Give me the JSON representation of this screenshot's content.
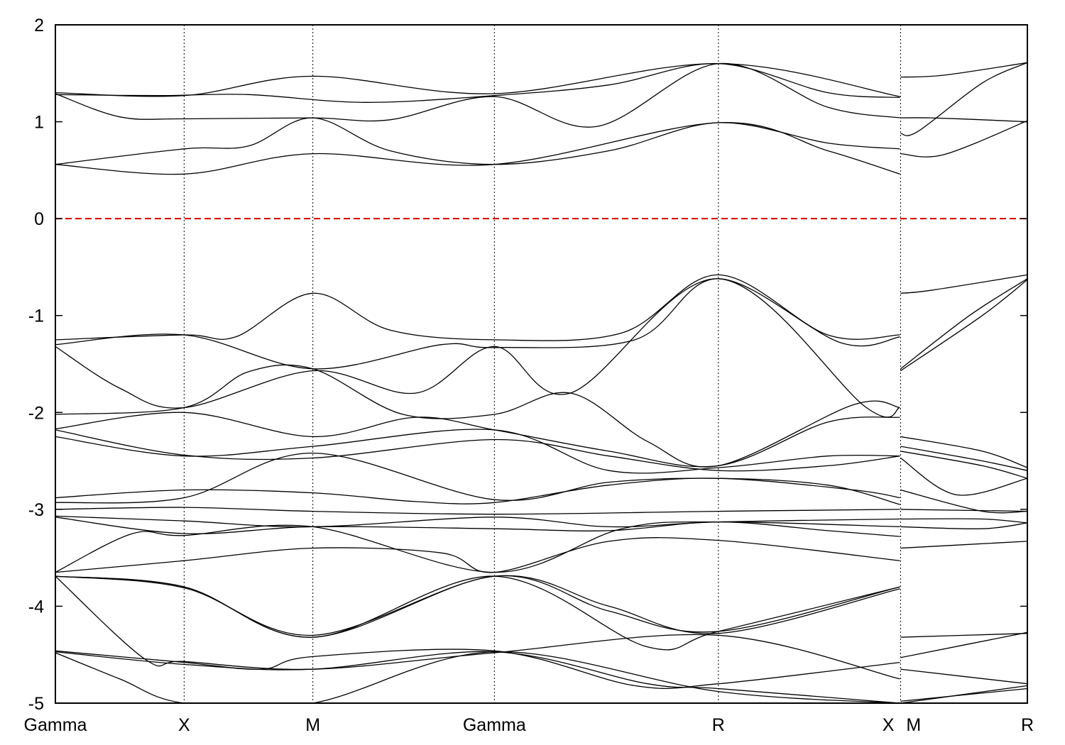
{
  "chart_data": {
    "type": "line",
    "title": "",
    "xlabel": "",
    "ylabel": "",
    "ylim": [
      -5,
      2
    ],
    "yticks": [
      2,
      1,
      0,
      -1,
      -2,
      -3,
      -4,
      -5
    ],
    "grid": "vertical dotted lines at high-symmetry points",
    "legend": "none",
    "kpoints": [
      {
        "label": "Gamma",
        "x": 0
      },
      {
        "label": "X",
        "x": 1
      },
      {
        "label": "M",
        "x": 2
      },
      {
        "label": "Gamma",
        "x": 3.41
      },
      {
        "label": "R",
        "x": 5.15
      },
      {
        "label": "X",
        "x": 6.56
      },
      {
        "label": "M",
        "x": 6.565
      },
      {
        "label": "R",
        "x": 7.55
      }
    ],
    "x_range": [
      0,
      7.55
    ],
    "fermi_level": {
      "y": 0,
      "color": "#cc0000",
      "style": "dashed"
    },
    "band_color": "#000000",
    "series": [
      {
        "x": [
          0,
          1,
          2,
          3.41,
          5.15,
          6.56
        ],
        "y": [
          1.3,
          1.27,
          1.47,
          1.29,
          1.6,
          1.26
        ]
      },
      {
        "x": [
          0,
          0.8,
          1.5,
          2.4,
          3.41,
          4.3,
          5.15,
          6.0,
          6.56
        ],
        "y": [
          1.28,
          1.27,
          1.28,
          1.2,
          1.27,
          1.38,
          1.6,
          1.3,
          1.25
        ]
      },
      {
        "x": [
          0,
          0.5,
          1,
          2,
          2.6,
          3.41,
          4.2,
          5.15,
          6.0,
          6.56
        ],
        "y": [
          1.29,
          1.05,
          1.03,
          1.04,
          1.02,
          1.26,
          0.95,
          1.6,
          1.15,
          1.04
        ]
      },
      {
        "x": [
          0,
          1,
          1.5,
          2,
          2.6,
          3.41,
          4.3,
          5.15,
          6.0,
          6.56
        ],
        "y": [
          0.56,
          0.72,
          0.75,
          1.04,
          0.7,
          0.56,
          0.7,
          0.99,
          0.78,
          0.72
        ]
      },
      {
        "x": [
          0,
          1,
          2,
          3.41,
          5.15,
          6.0,
          6.56
        ],
        "y": [
          0.56,
          0.46,
          0.67,
          0.56,
          0.99,
          0.7,
          0.46
        ]
      },
      {
        "x": [
          6.565,
          6.9,
          7.55
        ],
        "y": [
          1.46,
          1.48,
          1.61
        ]
      },
      {
        "x": [
          6.565,
          6.8,
          7.2,
          7.55
        ],
        "y": [
          1.04,
          1.04,
          1.02,
          1.0
        ]
      },
      {
        "x": [
          6.565,
          6.7,
          7.2,
          7.55
        ],
        "y": [
          0.88,
          0.9,
          1.4,
          1.61
        ]
      },
      {
        "x": [
          6.565,
          6.9,
          7.55
        ],
        "y": [
          0.67,
          0.66,
          1.01
        ]
      },
      {
        "x": [
          0,
          1,
          1.4,
          2,
          2.6,
          3.41,
          4.4,
          5.15,
          6.0,
          6.56
        ],
        "y": [
          -1.25,
          -1.2,
          -1.22,
          -0.77,
          -1.15,
          -1.25,
          -1.18,
          -0.58,
          -1.2,
          -1.2
        ]
      },
      {
        "x": [
          0,
          1,
          2,
          3.0,
          3.41,
          4.5,
          5.15,
          6.1,
          6.56
        ],
        "y": [
          -1.3,
          -1.2,
          -1.55,
          -1.3,
          -1.33,
          -1.25,
          -0.62,
          -1.28,
          -1.22
        ]
      },
      {
        "x": [
          0,
          0.5,
          1,
          2,
          2.8,
          3.41,
          4.0,
          5.15,
          6.3,
          6.56
        ],
        "y": [
          -1.32,
          -1.75,
          -1.95,
          -1.57,
          -1.8,
          -1.32,
          -1.8,
          -0.62,
          -1.95,
          -1.95
        ]
      },
      {
        "x": [
          0,
          1,
          1.5,
          2,
          2.7,
          3.41,
          4.0,
          4.6,
          5.15,
          6.2,
          6.56
        ],
        "y": [
          -2.02,
          -1.95,
          -1.58,
          -1.55,
          -2.02,
          -2.02,
          -1.8,
          -2.3,
          -2.55,
          -1.92,
          -1.95
        ]
      },
      {
        "x": [
          0,
          1,
          2,
          2.8,
          3.41,
          4.3,
          5.15,
          6.0,
          6.56
        ],
        "y": [
          -2.17,
          -2.0,
          -2.25,
          -2.05,
          -2.18,
          -2.4,
          -2.55,
          -2.1,
          -2.05
        ]
      },
      {
        "x": [
          0,
          1,
          2,
          3.41,
          4.3,
          5.15,
          6.0,
          6.56
        ],
        "y": [
          -2.25,
          -2.45,
          -2.35,
          -2.18,
          -2.6,
          -2.57,
          -2.45,
          -2.45
        ]
      },
      {
        "x": [
          0,
          1,
          2,
          3.41,
          4.3,
          5.15,
          6.0,
          6.56
        ],
        "y": [
          -2.18,
          -2.44,
          -2.47,
          -2.28,
          -2.45,
          -2.6,
          -2.55,
          -2.45
        ]
      },
      {
        "x": [
          0,
          1,
          2,
          2.8,
          3.41,
          4.3,
          5.15,
          6.2,
          6.56
        ],
        "y": [
          -2.88,
          -2.8,
          -2.83,
          -2.92,
          -2.93,
          -2.75,
          -2.68,
          -2.8,
          -2.88
        ]
      },
      {
        "x": [
          0,
          1,
          2,
          3.41,
          4.3,
          5.15,
          6.0,
          6.56
        ],
        "y": [
          -2.93,
          -2.88,
          -2.42,
          -2.9,
          -2.72,
          -2.68,
          -2.75,
          -2.95
        ]
      },
      {
        "x": [
          0,
          1,
          2,
          3.41,
          5.15,
          6.56
        ],
        "y": [
          -3.0,
          -2.98,
          -3.02,
          -3.05,
          -3.02,
          -3.0
        ]
      },
      {
        "x": [
          0,
          1,
          2,
          3.41,
          4.3,
          5.15,
          6.56
        ],
        "y": [
          -3.07,
          -3.12,
          -3.18,
          -3.08,
          -3.18,
          -3.13,
          -3.1
        ]
      },
      {
        "x": [
          0,
          1,
          2,
          3.41,
          4.3,
          5.15,
          6.0,
          6.56
        ],
        "y": [
          -3.08,
          -3.25,
          -3.18,
          -3.2,
          -3.22,
          -3.13,
          -3.22,
          -3.28
        ]
      },
      {
        "x": [
          0,
          0.6,
          1,
          2,
          3.41,
          4.4,
          5.15,
          6.56
        ],
        "y": [
          -3.65,
          -3.25,
          -3.27,
          -3.18,
          -3.65,
          -3.2,
          -3.13,
          -3.18
        ]
      },
      {
        "x": [
          0,
          1,
          2,
          3.0,
          3.41,
          4.3,
          5.15,
          6.56
        ],
        "y": [
          -3.65,
          -3.53,
          -3.4,
          -3.45,
          -3.65,
          -3.33,
          -3.32,
          -3.53
        ]
      },
      {
        "x": [
          0,
          1,
          2,
          3.41,
          4.3,
          5.15,
          6.56
        ],
        "y": [
          -3.69,
          -3.8,
          -4.32,
          -3.69,
          -4.05,
          -4.26,
          -3.8
        ]
      },
      {
        "x": [
          0,
          1,
          2,
          3.41,
          4.6,
          5.15,
          6.56
        ],
        "y": [
          -3.69,
          -3.8,
          -4.32,
          -3.69,
          -4.42,
          -4.26,
          -3.8
        ]
      },
      {
        "x": [
          0,
          1,
          2,
          3.41,
          4.3,
          5.15,
          6.56
        ],
        "y": [
          -3.69,
          -3.81,
          -4.3,
          -3.69,
          -4.0,
          -4.28,
          -3.82
        ]
      },
      {
        "x": [
          0,
          0.7,
          1,
          2,
          3.41,
          5.15,
          6.56
        ],
        "y": [
          -3.69,
          -4.55,
          -4.57,
          -4.65,
          -4.48,
          -4.3,
          -4.75
        ]
      },
      {
        "x": [
          0,
          1,
          1.6,
          2,
          3.41,
          4.5,
          5.15,
          6.56
        ],
        "y": [
          -4.46,
          -4.58,
          -4.65,
          -4.52,
          -4.46,
          -4.82,
          -4.8,
          -4.58
        ]
      },
      {
        "x": [
          0,
          1,
          2,
          3.41,
          4.6,
          5.15,
          6.56
        ],
        "y": [
          -4.47,
          -4.6,
          -4.65,
          -4.47,
          -4.8,
          -4.85,
          -5.0
        ]
      },
      {
        "x": [
          0,
          0.5,
          1,
          2,
          3.41,
          5.15,
          6.56
        ],
        "y": [
          -4.48,
          -4.75,
          -5.0,
          -5.0,
          -4.47,
          -4.88,
          -5.0
        ]
      },
      {
        "x": [
          6.565,
          6.8,
          7.55
        ],
        "y": [
          -0.77,
          -0.74,
          -0.58
        ]
      },
      {
        "x": [
          6.565,
          7.1,
          7.55
        ],
        "y": [
          -1.55,
          -1.0,
          -0.62
        ]
      },
      {
        "x": [
          6.565,
          7.2,
          7.55
        ],
        "y": [
          -1.57,
          -1.0,
          -0.63
        ]
      },
      {
        "x": [
          6.565,
          7.2,
          7.55
        ],
        "y": [
          -2.25,
          -2.4,
          -2.57
        ]
      },
      {
        "x": [
          6.565,
          7.2,
          7.55
        ],
        "y": [
          -2.35,
          -2.5,
          -2.6
        ]
      },
      {
        "x": [
          6.565,
          7.2,
          7.55
        ],
        "y": [
          -2.4,
          -2.55,
          -2.68
        ]
      },
      {
        "x": [
          6.565,
          7.0,
          7.55
        ],
        "y": [
          -2.47,
          -2.85,
          -2.68
        ]
      },
      {
        "x": [
          6.565,
          7.2,
          7.55
        ],
        "y": [
          -2.8,
          -3.02,
          -3.02
        ]
      },
      {
        "x": [
          6.565,
          7.55
        ],
        "y": [
          -3.0,
          -3.02
        ]
      },
      {
        "x": [
          6.565,
          7.2,
          7.55
        ],
        "y": [
          -3.1,
          -3.1,
          -3.14
        ]
      },
      {
        "x": [
          6.565,
          7.2,
          7.55
        ],
        "y": [
          -3.18,
          -3.2,
          -3.14
        ]
      },
      {
        "x": [
          6.565,
          7.55
        ],
        "y": [
          -3.4,
          -3.33
        ]
      },
      {
        "x": [
          6.565,
          7.55
        ],
        "y": [
          -4.32,
          -4.28
        ]
      },
      {
        "x": [
          6.565,
          7.55
        ],
        "y": [
          -4.53,
          -4.27
        ]
      },
      {
        "x": [
          6.565,
          7.55
        ],
        "y": [
          -4.65,
          -4.8
        ]
      },
      {
        "x": [
          6.565,
          7.55
        ],
        "y": [
          -5.0,
          -4.82
        ]
      },
      {
        "x": [
          6.565,
          7.55
        ],
        "y": [
          -4.98,
          -4.85
        ]
      }
    ]
  }
}
